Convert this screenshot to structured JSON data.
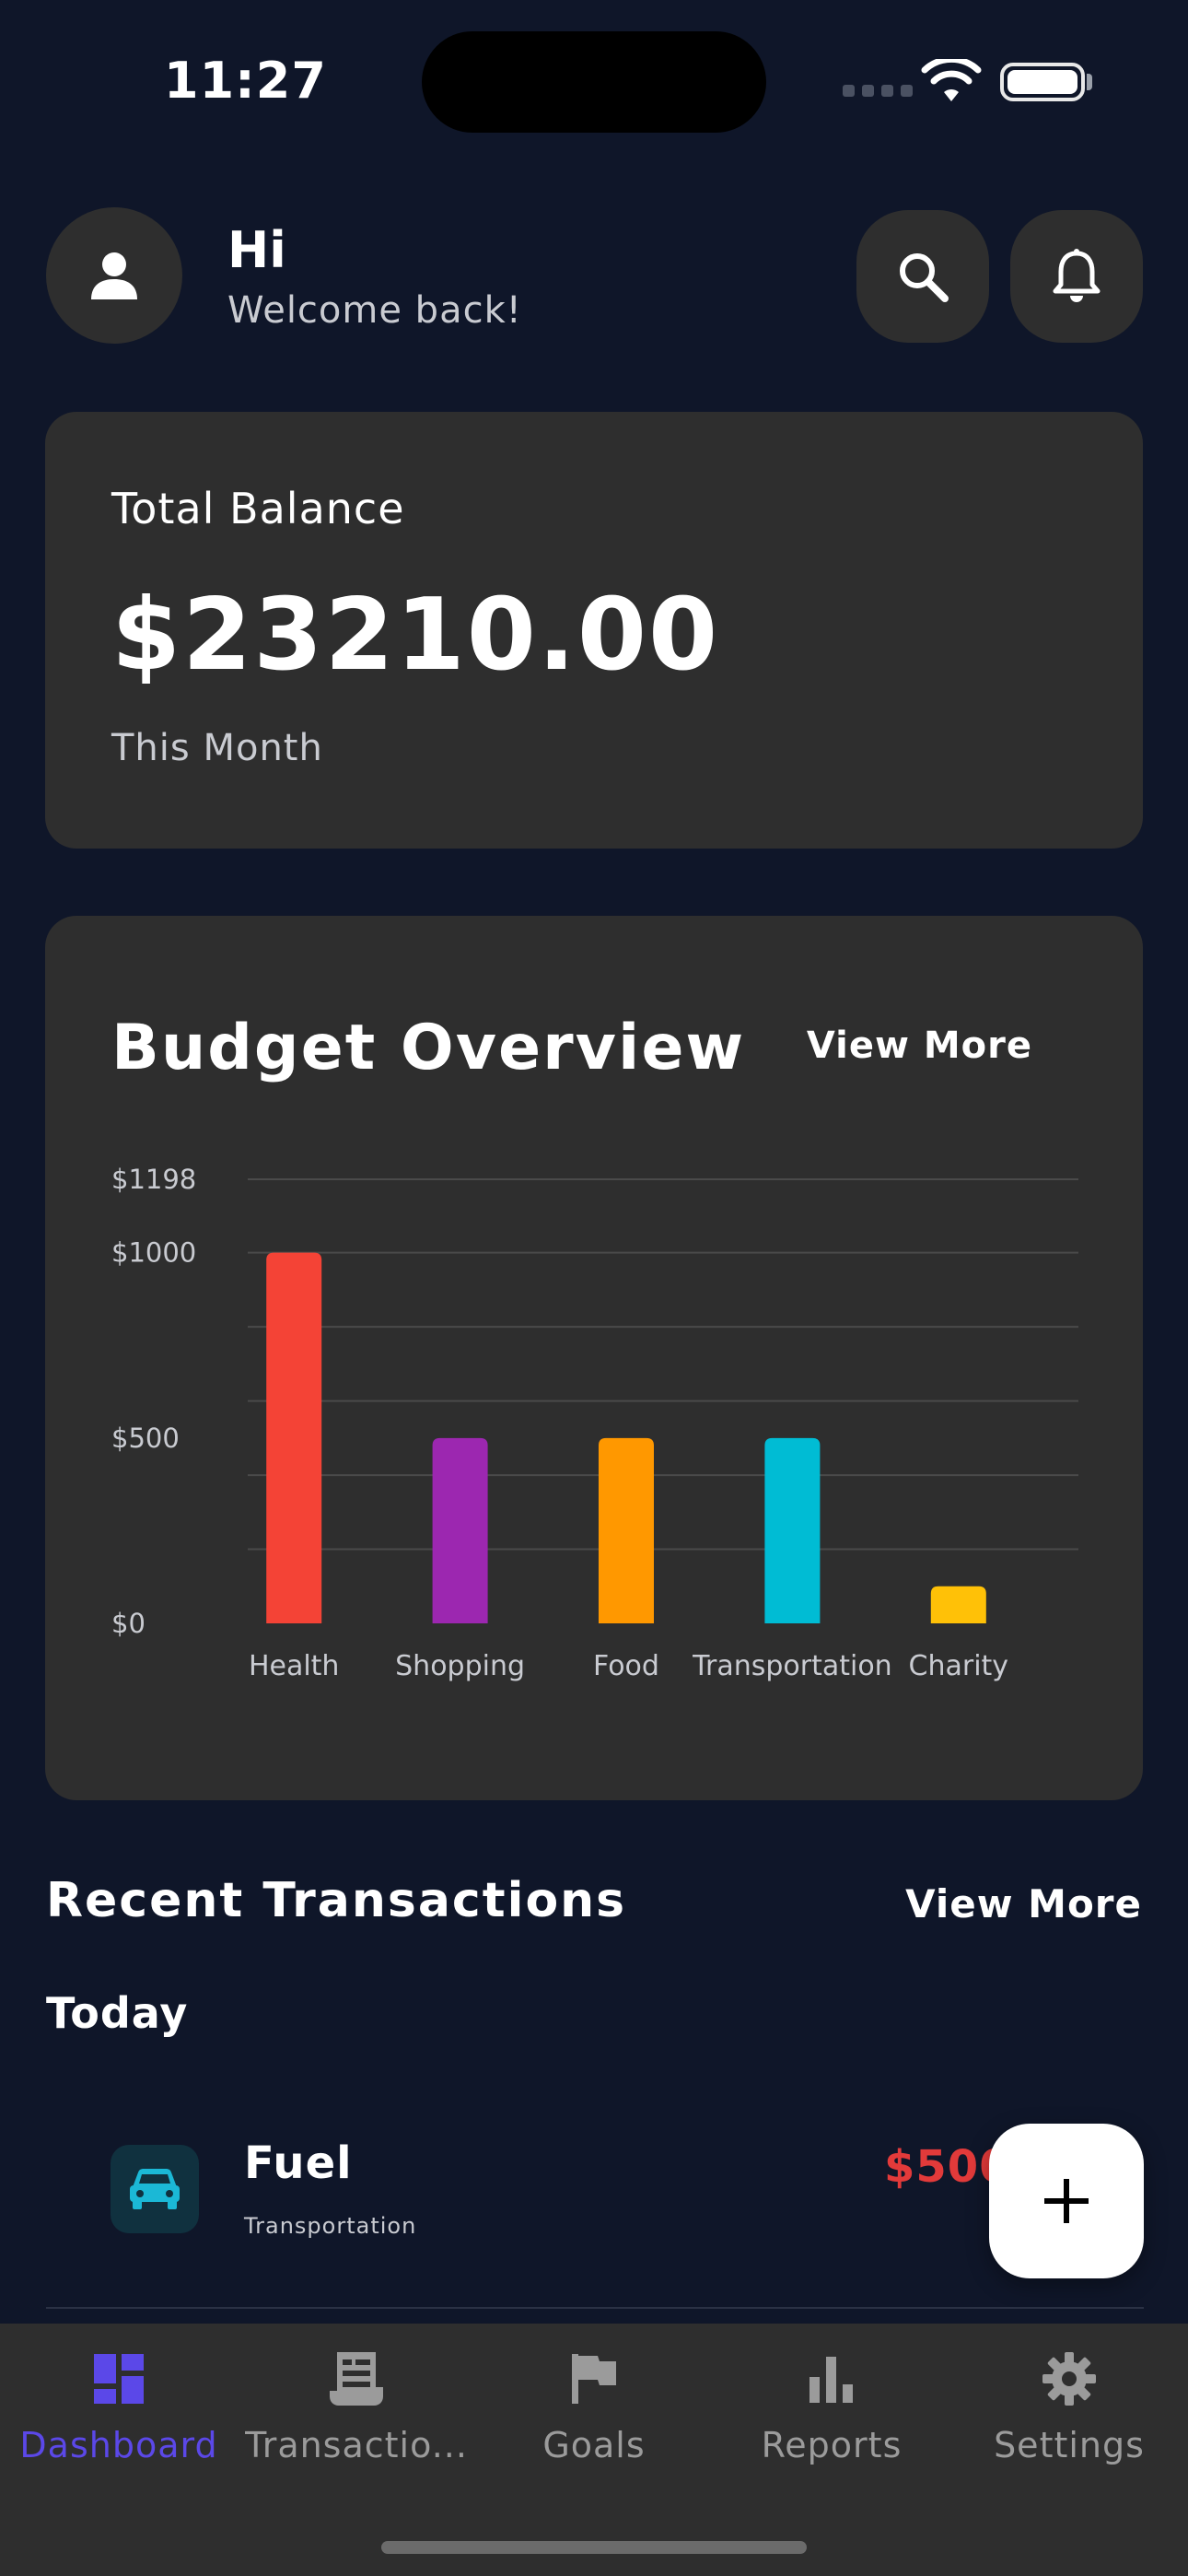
{
  "status_bar": {
    "time": "11:27"
  },
  "header": {
    "greeting": "Hi",
    "welcome": "Welcome back!"
  },
  "balance": {
    "label": "Total Balance",
    "amount": "$23210.00",
    "period": "This Month"
  },
  "budget": {
    "title": "Budget Overview",
    "view_more": "View More"
  },
  "chart_data": {
    "type": "bar",
    "categories": [
      "Health",
      "Shopping",
      "Food",
      "Transportation",
      "Charity"
    ],
    "values": [
      1000,
      500,
      500,
      500,
      100
    ],
    "colors": [
      "#f44336",
      "#9c27b0",
      "#ff9800",
      "#00bcd4",
      "#ffc107"
    ],
    "ylim": [
      0,
      1198
    ],
    "yticks": [
      0,
      500,
      1000,
      1198
    ],
    "ytick_labels": [
      "$0",
      "$500",
      "$1000",
      "$1198"
    ],
    "grid": true
  },
  "recent": {
    "title": "Recent Transactions",
    "view_more": "View More",
    "group": "Today",
    "transactions": [
      {
        "name": "Fuel",
        "category": "Transportation",
        "amount": "$500",
        "icon": "car-icon",
        "color": "#e23a3a"
      }
    ]
  },
  "fab": {
    "icon": "plus-icon"
  },
  "nav": {
    "items": [
      {
        "label": "Dashboard",
        "icon": "dashboard-icon",
        "active": true
      },
      {
        "label": "Transactio...",
        "icon": "receipt-icon",
        "active": false
      },
      {
        "label": "Goals",
        "icon": "flag-icon",
        "active": false
      },
      {
        "label": "Reports",
        "icon": "bar-chart-icon",
        "active": false
      },
      {
        "label": "Settings",
        "icon": "gear-icon",
        "active": false
      }
    ],
    "active_color": "#5b48e8",
    "inactive_color": "#9b9b9b"
  }
}
